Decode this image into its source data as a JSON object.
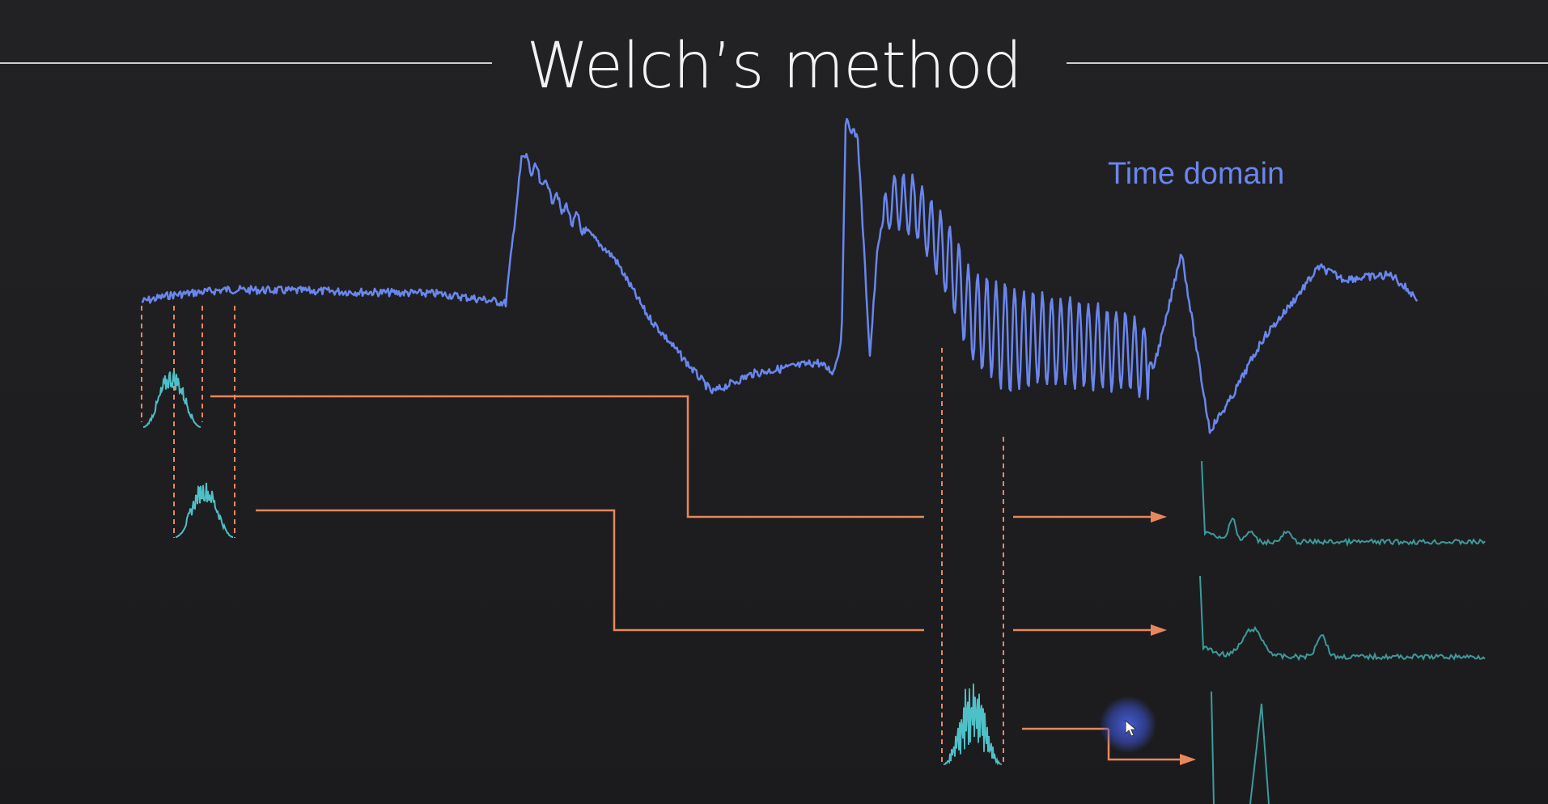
{
  "slide": {
    "title": "Welch’s method",
    "time_domain_label": "Time domain"
  },
  "colors": {
    "background": "#1f1f21",
    "time_signal": "#6a86ee",
    "window_signal": "#4fc0c8",
    "spectrum": "#3d9a9c",
    "connector": "#e8875e",
    "title": "#f2f2f2"
  },
  "icons": {
    "pointer": "cursor-icon"
  }
}
